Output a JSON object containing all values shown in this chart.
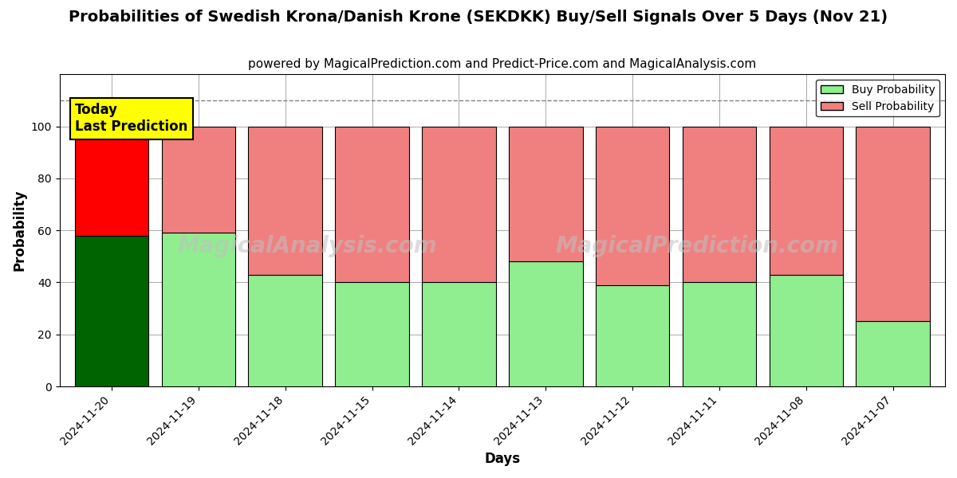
{
  "title": "Probabilities of Swedish Krona/Danish Krone (SEKDKK) Buy/Sell Signals Over 5 Days (Nov 21)",
  "subtitle": "powered by MagicalPrediction.com and Predict-Price.com and MagicalAnalysis.com",
  "xlabel": "Days",
  "ylabel": "Probability",
  "categories": [
    "2024-11-20",
    "2024-11-19",
    "2024-11-18",
    "2024-11-15",
    "2024-11-14",
    "2024-11-13",
    "2024-11-12",
    "2024-11-11",
    "2024-11-08",
    "2024-11-07"
  ],
  "buy_values": [
    58,
    59,
    43,
    40,
    40,
    48,
    39,
    40,
    43,
    25
  ],
  "sell_values": [
    42,
    41,
    57,
    60,
    60,
    52,
    61,
    60,
    57,
    75
  ],
  "today_buy_color": "#006400",
  "today_sell_color": "#FF0000",
  "normal_buy_color": "#90EE90",
  "normal_sell_color": "#F08080",
  "bar_edge_color": "#000000",
  "ylim": [
    0,
    120
  ],
  "yticks": [
    0,
    20,
    40,
    60,
    80,
    100
  ],
  "dashed_line_y": 110,
  "annotation_text": "Today\nLast Prediction",
  "watermark_left": "MagicalAnalysis.com",
  "watermark_right": "MagicalPrediction.com",
  "legend_buy_label": "Buy Probability",
  "legend_sell_label": "Sell Probability",
  "title_fontsize": 14,
  "subtitle_fontsize": 11,
  "axis_label_fontsize": 12,
  "tick_fontsize": 10,
  "background_color": "#ffffff",
  "grid_color": "#aaaaaa",
  "bar_width": 0.85
}
